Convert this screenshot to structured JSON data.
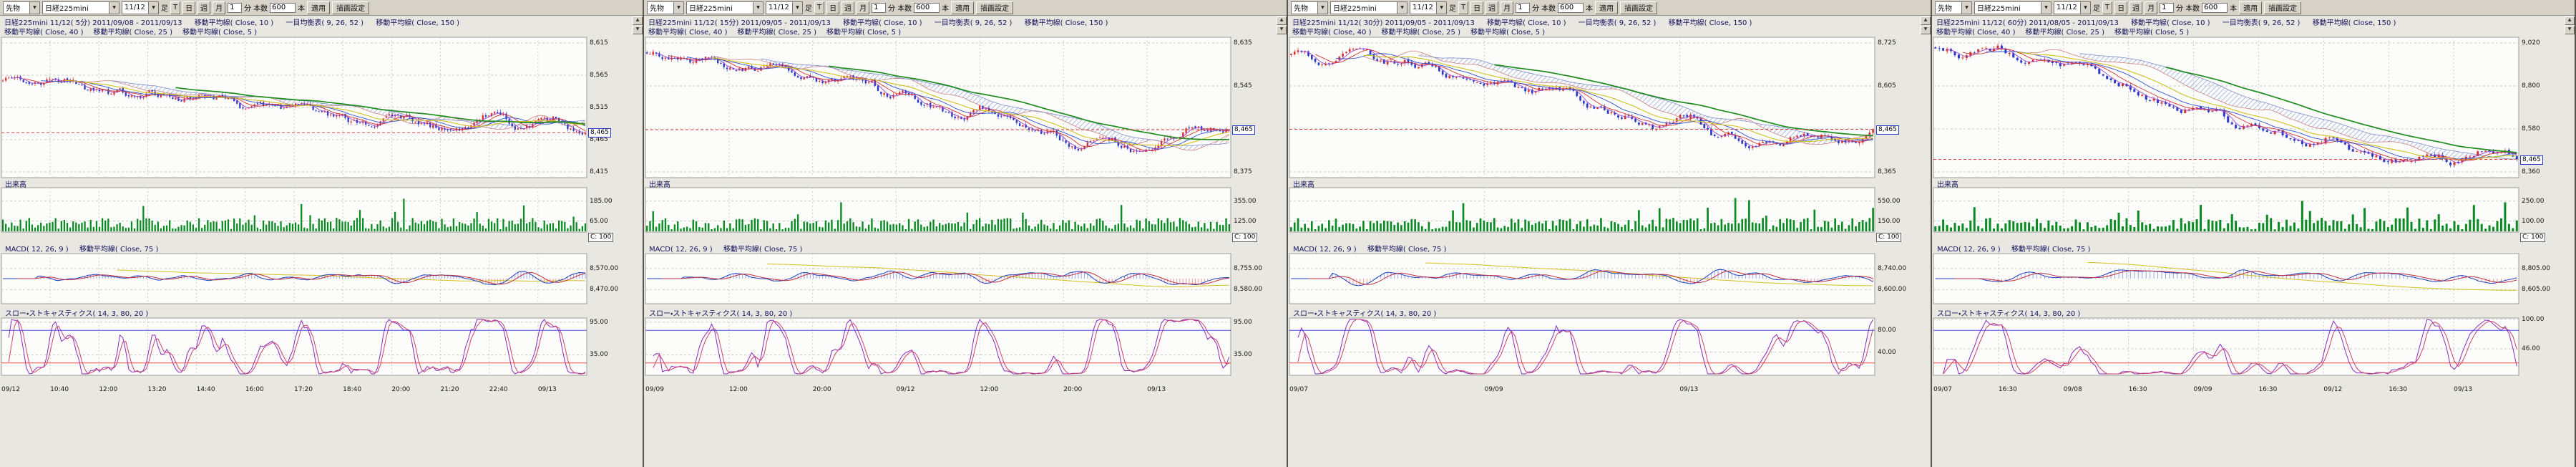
{
  "toolbar": {
    "market": "先物",
    "symbol": "日経225mini",
    "contract": "11/12",
    "ashi_label": "足",
    "period_buttons": [
      "T",
      "日",
      "週",
      "月"
    ],
    "interval_value": "1",
    "interval_unit": "分",
    "bars_label": "本数",
    "bars_value": "600",
    "bars_unit": "本",
    "apply_label": "適用",
    "settings_label": "描画設定"
  },
  "panels": [
    {
      "header": {
        "title": "日経225mini 11/12( 5分) 2011/09/08 - 2011/09/13",
        "ind1": "移動平均線( Close, 10 )",
        "ind2": "一目均衡表( 9, 26, 52 )",
        "ind3": "移動平均線( Close, 150 )",
        "line2": [
          "移動平均線( Close, 40 )",
          "移動平均線( Close, 25 )",
          "移動平均線( Close, 5 )"
        ]
      },
      "price_axis": [
        "8,615",
        "8,565",
        "8,515",
        "8,465",
        "8,415"
      ],
      "last_price": "8,465",
      "volume": {
        "label": "出来高",
        "axis": [
          "185.00",
          "65.00"
        ],
        "badge": "C: 100"
      },
      "macd": {
        "label": "MACD( 12, 26, 9 )",
        "label2": "移動平均線( Close, 75 )",
        "axis": [
          "8,570.00",
          "8,470.00"
        ]
      },
      "stoch": {
        "label": "スロー・ストキャスティクス( 14, 3, 80, 20 )",
        "axis": [
          "95.00",
          "35.00"
        ]
      },
      "time_axis": [
        "09/12",
        "10:40",
        "12:00",
        "13:20",
        "14:40",
        "16:00",
        "17:20",
        "18:40",
        "20:00",
        "21:20",
        "22:40",
        "09/13"
      ],
      "chart": {
        "seed": 11,
        "candles": 200,
        "trend": [
          0.3,
          0.32,
          0.28,
          0.35,
          0.4,
          0.38,
          0.45,
          0.43,
          0.5,
          0.55,
          0.52,
          0.6,
          0.65,
          0.62,
          0.7,
          0.66,
          0.58,
          0.64,
          0.6,
          0.72
        ]
      }
    },
    {
      "header": {
        "title": "日経225mini 11/12( 15分) 2011/09/05 - 2011/09/13",
        "ind1": "移動平均線( Close, 10 )",
        "ind2": "一目均衡表( 9, 26, 52 )",
        "ind3": "移動平均線( Close, 150 )",
        "line2": [
          "移動平均線( Close, 40 )",
          "移動平均線( Close, 25 )",
          "移動平均線( Close, 5 )"
        ]
      },
      "price_axis": [
        "8,635",
        "8,545",
        "8,465",
        "8,375"
      ],
      "last_price": "8,465",
      "volume": {
        "label": "出来高",
        "axis": [
          "355.00",
          "125.00"
        ],
        "badge": "C: 100"
      },
      "macd": {
        "label": "MACD( 12, 26, 9 )",
        "label2": "移動平均線( Close, 75 )",
        "axis": [
          "8,755.00",
          "8,580.00"
        ]
      },
      "stoch": {
        "label": "スロー・ストキャスティクス( 14, 3, 80, 20 )",
        "axis": [
          "95.00",
          "35.00"
        ]
      },
      "time_axis": [
        "09/09",
        "12:00",
        "20:00",
        "09/12",
        "12:00",
        "20:00",
        "09/13"
      ],
      "chart": {
        "seed": 23,
        "candles": 190,
        "trend": [
          0.12,
          0.15,
          0.13,
          0.2,
          0.18,
          0.25,
          0.3,
          0.28,
          0.38,
          0.45,
          0.55,
          0.5,
          0.62,
          0.7,
          0.78,
          0.72,
          0.8,
          0.74,
          0.68,
          0.65
        ]
      }
    },
    {
      "header": {
        "title": "日経225mini 11/12( 30分) 2011/09/05 - 2011/09/13",
        "ind1": "移動平均線( Close, 10 )",
        "ind2": "一目均衡表( 9, 26, 52 )",
        "ind3": "移動平均線( Close, 150 )",
        "line2": [
          "移動平均線( Close, 40 )",
          "移動平均線( Close, 25 )",
          "移動平均線( Close, 5 )"
        ]
      },
      "price_axis": [
        "8,725",
        "8,605",
        "8,485",
        "8,365"
      ],
      "last_price": "8,465",
      "volume": {
        "label": "出来高",
        "axis": [
          "550.00",
          "150.00"
        ],
        "badge": "C: 100"
      },
      "macd": {
        "label": "MACD( 12, 26, 9 )",
        "label2": "移動平均線( Close, 75 )",
        "axis": [
          "8,740.00",
          "8,600.00"
        ]
      },
      "stoch": {
        "label": "スロー・ストキャスティクス( 14, 3, 80, 20 )",
        "axis": [
          "80.00",
          "40.00"
        ]
      },
      "time_axis": [
        "09/07",
        "09/09",
        "09/13"
      ],
      "chart": {
        "seed": 37,
        "candles": 170,
        "trend": [
          0.1,
          0.13,
          0.11,
          0.18,
          0.15,
          0.22,
          0.3,
          0.27,
          0.38,
          0.35,
          0.48,
          0.55,
          0.65,
          0.6,
          0.72,
          0.8,
          0.75,
          0.68,
          0.74,
          0.7
        ]
      }
    },
    {
      "header": {
        "title": "日経225mini 11/12( 60分) 2011/08/05 - 2011/09/13",
        "ind1": "移動平均線( Close, 10 )",
        "ind2": "一目均衡表( 9, 26, 52 )",
        "ind3": "移動平均線( Close, 150 )",
        "line2": [
          "移動平均線( Close, 40 )",
          "移動平均線( Close, 25 )",
          "移動平均線( Close, 5 )"
        ]
      },
      "price_axis": [
        "9,020",
        "8,800",
        "8,580",
        "8,360"
      ],
      "last_price": "8,465",
      "volume": {
        "label": "出来高",
        "axis": [
          "250.00",
          "100.00"
        ],
        "badge": "C: 100"
      },
      "macd": {
        "label": "MACD( 12, 26, 9 )",
        "label2": "移動平均線( Close, 75 )",
        "axis": [
          "8,805.00",
          "8,605.00"
        ]
      },
      "stoch": {
        "label": "スロー・ストキャスティクス( 14, 3, 80, 20 )",
        "axis": [
          "100.00",
          "46.00"
        ]
      },
      "time_axis": [
        "09/07",
        "16:30",
        "09/08",
        "16:30",
        "09/09",
        "16:30",
        "09/12",
        "16:30",
        "09/13"
      ],
      "chart": {
        "seed": 51,
        "candles": 150,
        "trend": [
          0.08,
          0.12,
          0.1,
          0.18,
          0.25,
          0.22,
          0.35,
          0.45,
          0.55,
          0.5,
          0.62,
          0.7,
          0.78,
          0.72,
          0.82,
          0.88,
          0.8,
          0.86,
          0.78,
          0.84
        ]
      }
    }
  ]
}
